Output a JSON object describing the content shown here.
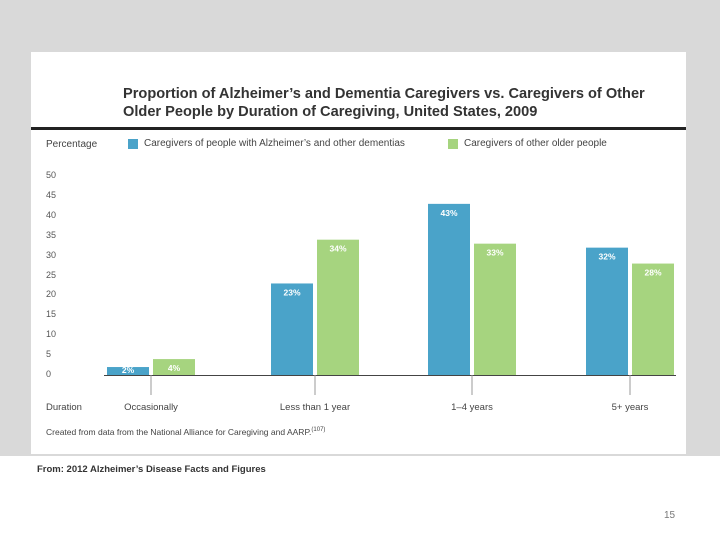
{
  "slide": {
    "page_number": "15",
    "source": "From: 2012 Alzheimer’s Disease Facts and Figures"
  },
  "colors": {
    "alz": "#4aa3c9",
    "other": "#a6d47f",
    "axis": "#444444",
    "label_text": "#ffffff"
  },
  "chart_data": {
    "type": "bar",
    "title_line1": "Proportion of Alzheimer’s and Dementia Caregivers vs. Caregivers of Other",
    "title_line2": "Older People by Duration of Caregiving, United States, 2009",
    "ylabel": "Percentage",
    "xlabel": "Duration",
    "ylim": [
      0,
      50
    ],
    "yticks": [
      "0",
      "5",
      "10",
      "15",
      "20",
      "25",
      "30",
      "35",
      "40",
      "45",
      "50"
    ],
    "categories": [
      "Occasionally",
      "Less than 1 year",
      "1–4 years",
      "5+ years"
    ],
    "series": [
      {
        "name": "Caregivers of people with Alzheimer’s and other dementias",
        "values": [
          2,
          23,
          43,
          32
        ],
        "labels": [
          "2%",
          "23%",
          "43%",
          "32%"
        ]
      },
      {
        "name": "Caregivers of other older people",
        "values": [
          4,
          34,
          33,
          28
        ],
        "labels": [
          "4%",
          "34%",
          "33%",
          "28%"
        ]
      }
    ],
    "note": "Created from data from the National Alliance for Caregiving and AARP.",
    "note_ref": "(107)"
  }
}
